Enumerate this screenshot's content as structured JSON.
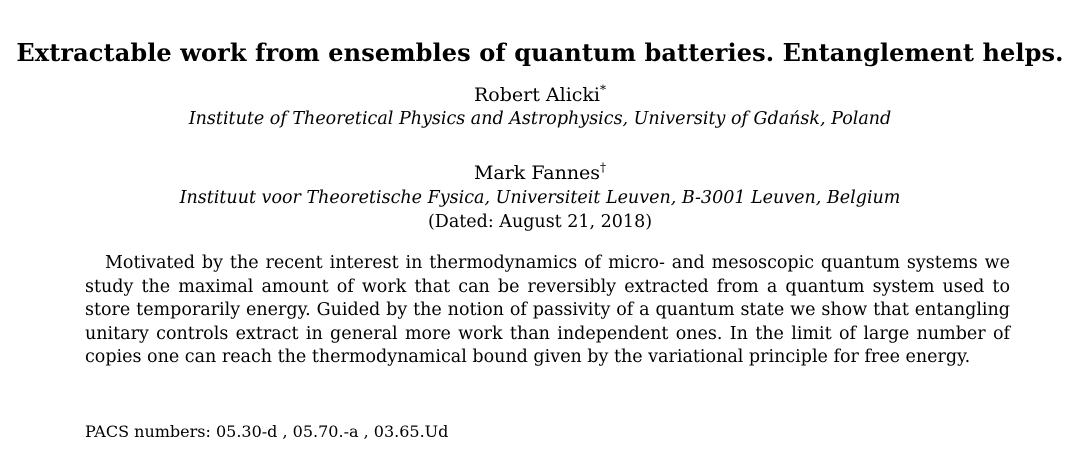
{
  "paper": {
    "title": "Extractable work from ensembles of quantum batteries. Entanglement helps.",
    "authors": [
      {
        "name": "Robert Alicki",
        "mark": "*",
        "affiliation": "Institute of Theoretical Physics and Astrophysics, University of Gdańsk, Poland"
      },
      {
        "name": "Mark Fannes",
        "mark": "†",
        "affiliation": "Instituut voor Theoretische Fysica, Universiteit Leuven, B-3001 Leuven, Belgium"
      }
    ],
    "dated": "(Dated: August 21, 2018)",
    "abstract": "Motivated by the recent interest in thermodynamics of micro- and mesoscopic quantum systems we study the maximal amount of work that can be reversibly extracted from a quantum system used to store temporarily energy. Guided by the notion of passivity of a quantum state we show that entangling unitary controls extract in general more work than independent ones. In the limit of large number of copies one can reach the thermodynamical bound given by the variational principle for free energy.",
    "pacs": "PACS numbers: 05.30-d , 05.70.-a , 03.65.Ud"
  }
}
